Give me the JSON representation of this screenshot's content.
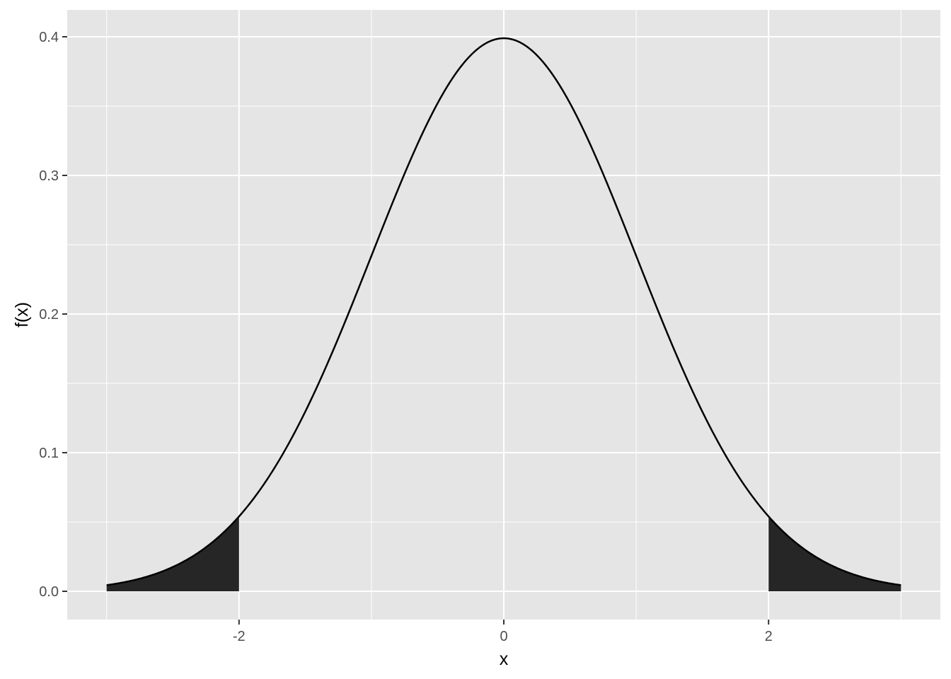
{
  "chart_data": {
    "type": "area",
    "distribution": "standard normal density",
    "xlabel": "x",
    "ylabel": "f(x)",
    "xlim": [
      -3,
      3
    ],
    "ylim": [
      0,
      0.4
    ],
    "x_ticks": [
      -2,
      0,
      2
    ],
    "x_tick_labels": [
      "-2",
      "0",
      "2"
    ],
    "y_ticks": [
      0.0,
      0.1,
      0.2,
      0.3,
      0.4
    ],
    "y_tick_labels": [
      "0.0",
      "0.1",
      "0.2",
      "0.3",
      "0.4"
    ],
    "grid": true,
    "legend": "none",
    "series": [
      {
        "x": [
          -3,
          -2.5,
          -2,
          -1.5,
          -1,
          -0.5,
          0,
          0.5,
          1,
          1.5,
          2,
          2.5,
          3
        ],
        "y": [
          0.0044,
          0.0175,
          0.054,
          0.1295,
          0.242,
          0.3521,
          0.3989,
          0.3521,
          0.242,
          0.1295,
          0.054,
          0.0175,
          0.0044
        ]
      }
    ],
    "shaded_regions": [
      {
        "x_from": -3,
        "x_to": -2
      },
      {
        "x_from": 2,
        "x_to": 3
      }
    ],
    "colors": {
      "panel": "#e5e5e5",
      "grid": "#ffffff",
      "curve": "#000000",
      "shade": "#262626"
    }
  }
}
